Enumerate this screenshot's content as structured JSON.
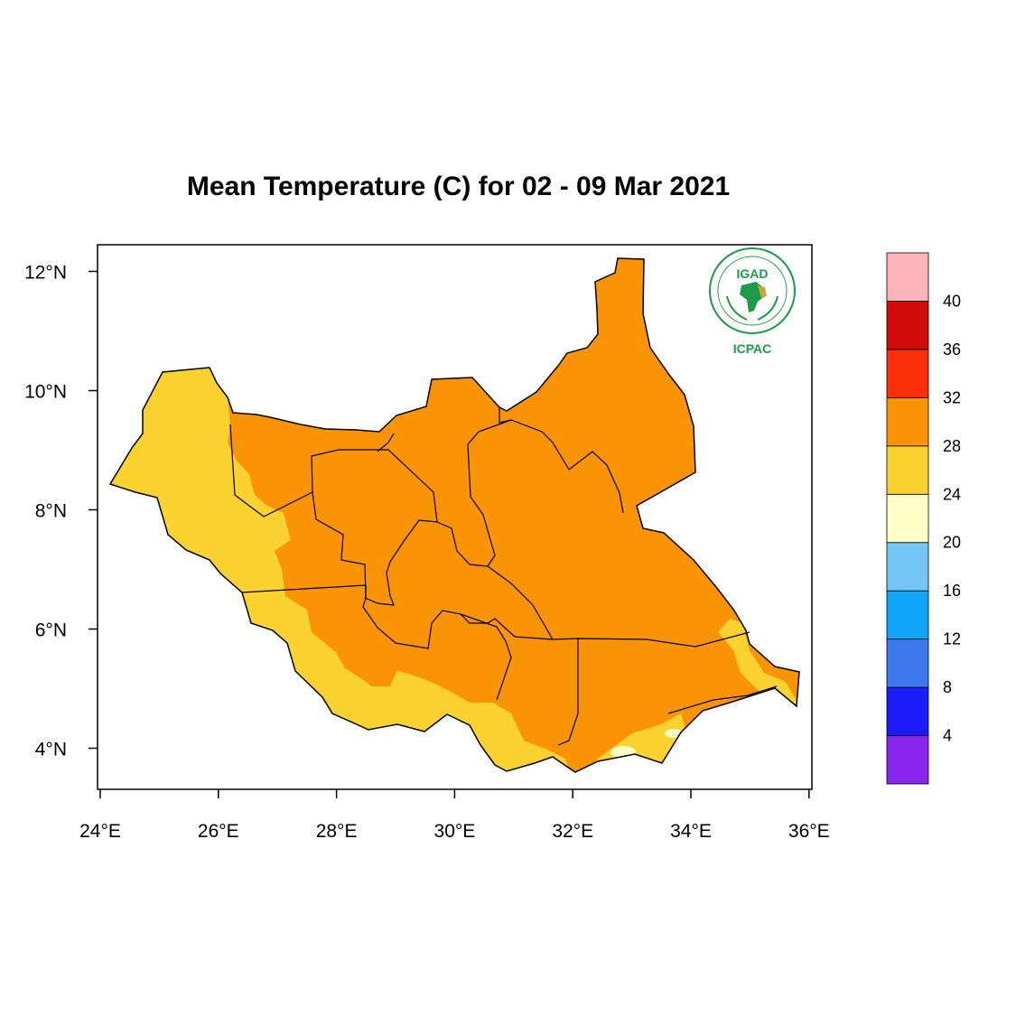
{
  "title": "Mean Temperature (C) for 02 - 09 Mar 2021",
  "logo": {
    "top_text": "IGAD",
    "bottom_text": "ICPAC",
    "color": "#1e9b48"
  },
  "map": {
    "lon_range": [
      24,
      36
    ],
    "lat_range": [
      3.5,
      12.5
    ],
    "x_ticks": [
      {
        "value": 24,
        "label": "24°E"
      },
      {
        "value": 26,
        "label": "26°E"
      },
      {
        "value": 28,
        "label": "28°E"
      },
      {
        "value": 30,
        "label": "30°E"
      },
      {
        "value": 32,
        "label": "32°E"
      },
      {
        "value": 34,
        "label": "34°E"
      },
      {
        "value": 36,
        "label": "36°E"
      }
    ],
    "y_ticks": [
      {
        "value": 4,
        "label": "4°N"
      },
      {
        "value": 6,
        "label": "6°N"
      },
      {
        "value": 8,
        "label": "8°N"
      },
      {
        "value": 10,
        "label": "10°N"
      },
      {
        "value": 12,
        "label": "12°N"
      }
    ],
    "fill_colors": {
      "band_24_28": "#fbd22f",
      "band_28_32": "#fb9404",
      "band_20_24": "#ffffc8"
    }
  },
  "colorbar": {
    "labels": [
      "4",
      "8",
      "12",
      "16",
      "20",
      "24",
      "28",
      "32",
      "36",
      "40"
    ],
    "colors": [
      "#8a24ef",
      "#1c1cfb",
      "#3a78ec",
      "#0fa6fa",
      "#73c6f5",
      "#ffffc8",
      "#fbd22f",
      "#fb9404",
      "#fc3008",
      "#d20b0b",
      "#ffb4b9"
    ]
  }
}
